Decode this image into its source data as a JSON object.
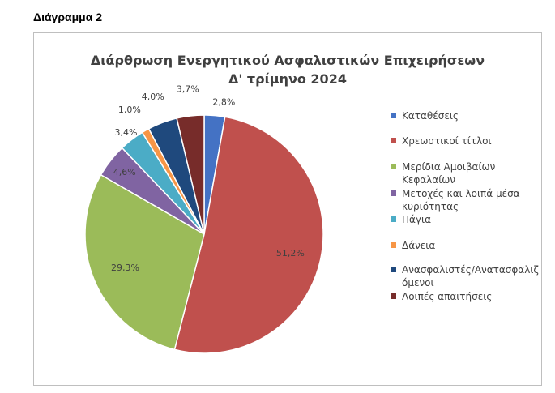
{
  "document_label": "Διάγραμμα 2",
  "chart_data": {
    "type": "pie",
    "title": "Διάρθρωση Ενεργητικού Ασφαλιστικών Επιχειρήσεων",
    "subtitle": "Δ' τρίμηνο 2024",
    "legend_position": "right",
    "slices": [
      {
        "name": "Καταθέσεις",
        "value": 2.8,
        "label": "2,8%",
        "color": "#4472c4"
      },
      {
        "name": "Χρεωστικοί τίτλοι",
        "value": 51.2,
        "label": "51,2%",
        "color": "#c0504d"
      },
      {
        "name": "Μερίδια Αμοιβαίων Κεφαλαίων",
        "value": 29.3,
        "label": "29,3%",
        "color": "#9bbb59"
      },
      {
        "name": "Μετοχές και λοιπά μέσα κυριότητας",
        "value": 4.6,
        "label": "4,6%",
        "color": "#8064a2"
      },
      {
        "name": "Πάγια",
        "value": 3.4,
        "label": "3,4%",
        "color": "#4bacc6"
      },
      {
        "name": "Δάνεια",
        "value": 1.0,
        "label": "1,0%",
        "color": "#f79646"
      },
      {
        "name": "Ανασφαλιστές/Αντασφαλιζόμενοι",
        "value": 4.0,
        "label": "4,0%",
        "color": "#1f497d"
      },
      {
        "name": "Λοιπές απαιτήσεις",
        "value": 3.7,
        "label": "3,7%",
        "color": "#772c2a"
      }
    ]
  },
  "legend": [
    {
      "text": "Καταθέσεις"
    },
    {
      "text": "Χρεωστικοί τίτλοι"
    },
    {
      "text": "Μερίδια Αμοιβαίων\nΚεφαλαίων"
    },
    {
      "text": "Μετοχές και λοιπά μέσα\nκυριότητας"
    },
    {
      "text": "Πάγια"
    },
    {
      "text": "Δάνεια"
    },
    {
      "text": "Ανασφαλιστές/Ανατασφαλιζ\nόμενοι"
    },
    {
      "text": "Λοιπές απαιτήσεις"
    }
  ]
}
